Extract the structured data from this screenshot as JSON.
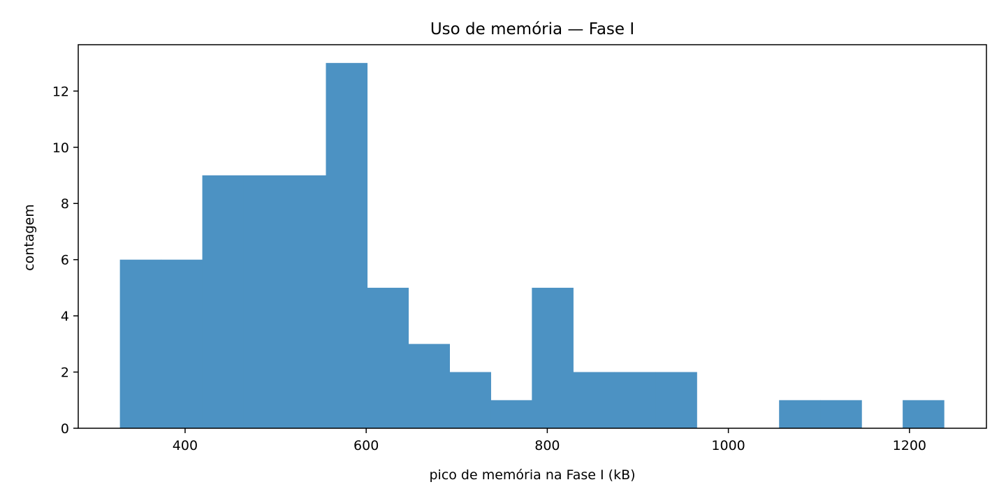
{
  "chart_data": {
    "type": "bar",
    "title": "Uso de memória — Fase I",
    "xlabel": "pico de memória na Fase I (kB)",
    "ylabel": "contagem",
    "xlim": [
      282,
      1285
    ],
    "ylim": [
      0,
      13.65
    ],
    "xticks": [
      400,
      600,
      800,
      1000,
      1200
    ],
    "yticks": [
      0,
      2,
      4,
      6,
      8,
      10,
      12
    ],
    "bin_width": 45.5,
    "bins": [
      {
        "start": 328,
        "end": 373.5,
        "count": 6
      },
      {
        "start": 373.5,
        "end": 419,
        "count": 6
      },
      {
        "start": 419,
        "end": 464.5,
        "count": 9
      },
      {
        "start": 464.5,
        "end": 510,
        "count": 9
      },
      {
        "start": 510,
        "end": 555.5,
        "count": 9
      },
      {
        "start": 555.5,
        "end": 601,
        "count": 13
      },
      {
        "start": 601,
        "end": 646.5,
        "count": 5
      },
      {
        "start": 646.5,
        "end": 692,
        "count": 3
      },
      {
        "start": 692,
        "end": 737.5,
        "count": 2
      },
      {
        "start": 737.5,
        "end": 783,
        "count": 1
      },
      {
        "start": 783,
        "end": 828.5,
        "count": 5
      },
      {
        "start": 828.5,
        "end": 874,
        "count": 2
      },
      {
        "start": 874,
        "end": 919.5,
        "count": 2
      },
      {
        "start": 919.5,
        "end": 965,
        "count": 2
      },
      {
        "start": 965,
        "end": 1010.5,
        "count": 0
      },
      {
        "start": 1010.5,
        "end": 1056,
        "count": 0
      },
      {
        "start": 1056,
        "end": 1101.5,
        "count": 1
      },
      {
        "start": 1101.5,
        "end": 1147,
        "count": 1
      },
      {
        "start": 1147,
        "end": 1192.5,
        "count": 0
      },
      {
        "start": 1192.5,
        "end": 1238,
        "count": 1
      }
    ],
    "bar_color": "#4c92c3",
    "grid": false,
    "legend": "none"
  }
}
